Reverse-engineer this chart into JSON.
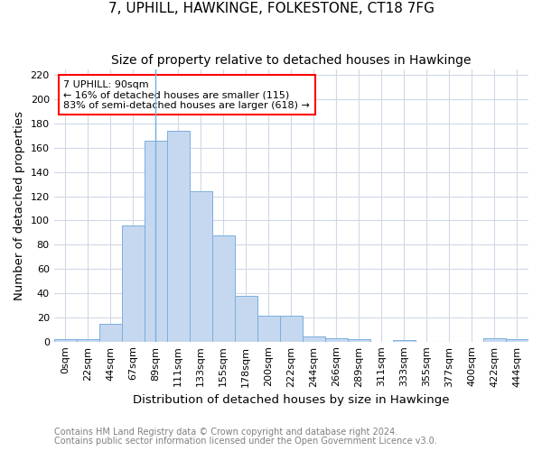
{
  "title": "7, UPHILL, HAWKINGE, FOLKESTONE, CT18 7FG",
  "subtitle": "Size of property relative to detached houses in Hawkinge",
  "xlabel": "Distribution of detached houses by size in Hawkinge",
  "ylabel": "Number of detached properties",
  "footnote1": "Contains HM Land Registry data © Crown copyright and database right 2024.",
  "footnote2": "Contains public sector information licensed under the Open Government Licence v3.0.",
  "bar_labels": [
    "0sqm",
    "22sqm",
    "44sqm",
    "67sqm",
    "89sqm",
    "111sqm",
    "133sqm",
    "155sqm",
    "178sqm",
    "200sqm",
    "222sqm",
    "244sqm",
    "266sqm",
    "289sqm",
    "311sqm",
    "333sqm",
    "355sqm",
    "377sqm",
    "400sqm",
    "422sqm",
    "444sqm"
  ],
  "bar_values": [
    2,
    2,
    15,
    96,
    166,
    174,
    124,
    88,
    38,
    21,
    21,
    4,
    3,
    2,
    0,
    1,
    0,
    0,
    0,
    3,
    2
  ],
  "bar_color": "#c5d8f0",
  "bar_edge_color": "#7aafdc",
  "property_line_index": 4,
  "annotation_text": "7 UPHILL: 90sqm\n← 16% of detached houses are smaller (115)\n83% of semi-detached houses are larger (618) →",
  "annotation_box_color": "white",
  "annotation_box_edge_color": "red",
  "ylim": [
    0,
    225
  ],
  "yticks": [
    0,
    20,
    40,
    60,
    80,
    100,
    120,
    140,
    160,
    180,
    200,
    220
  ],
  "background_color": "white",
  "plot_bg_color": "white",
  "grid_color": "#d0d8e8",
  "title_fontsize": 11,
  "subtitle_fontsize": 10,
  "axis_label_fontsize": 9.5,
  "tick_fontsize": 8,
  "footnote_fontsize": 7
}
